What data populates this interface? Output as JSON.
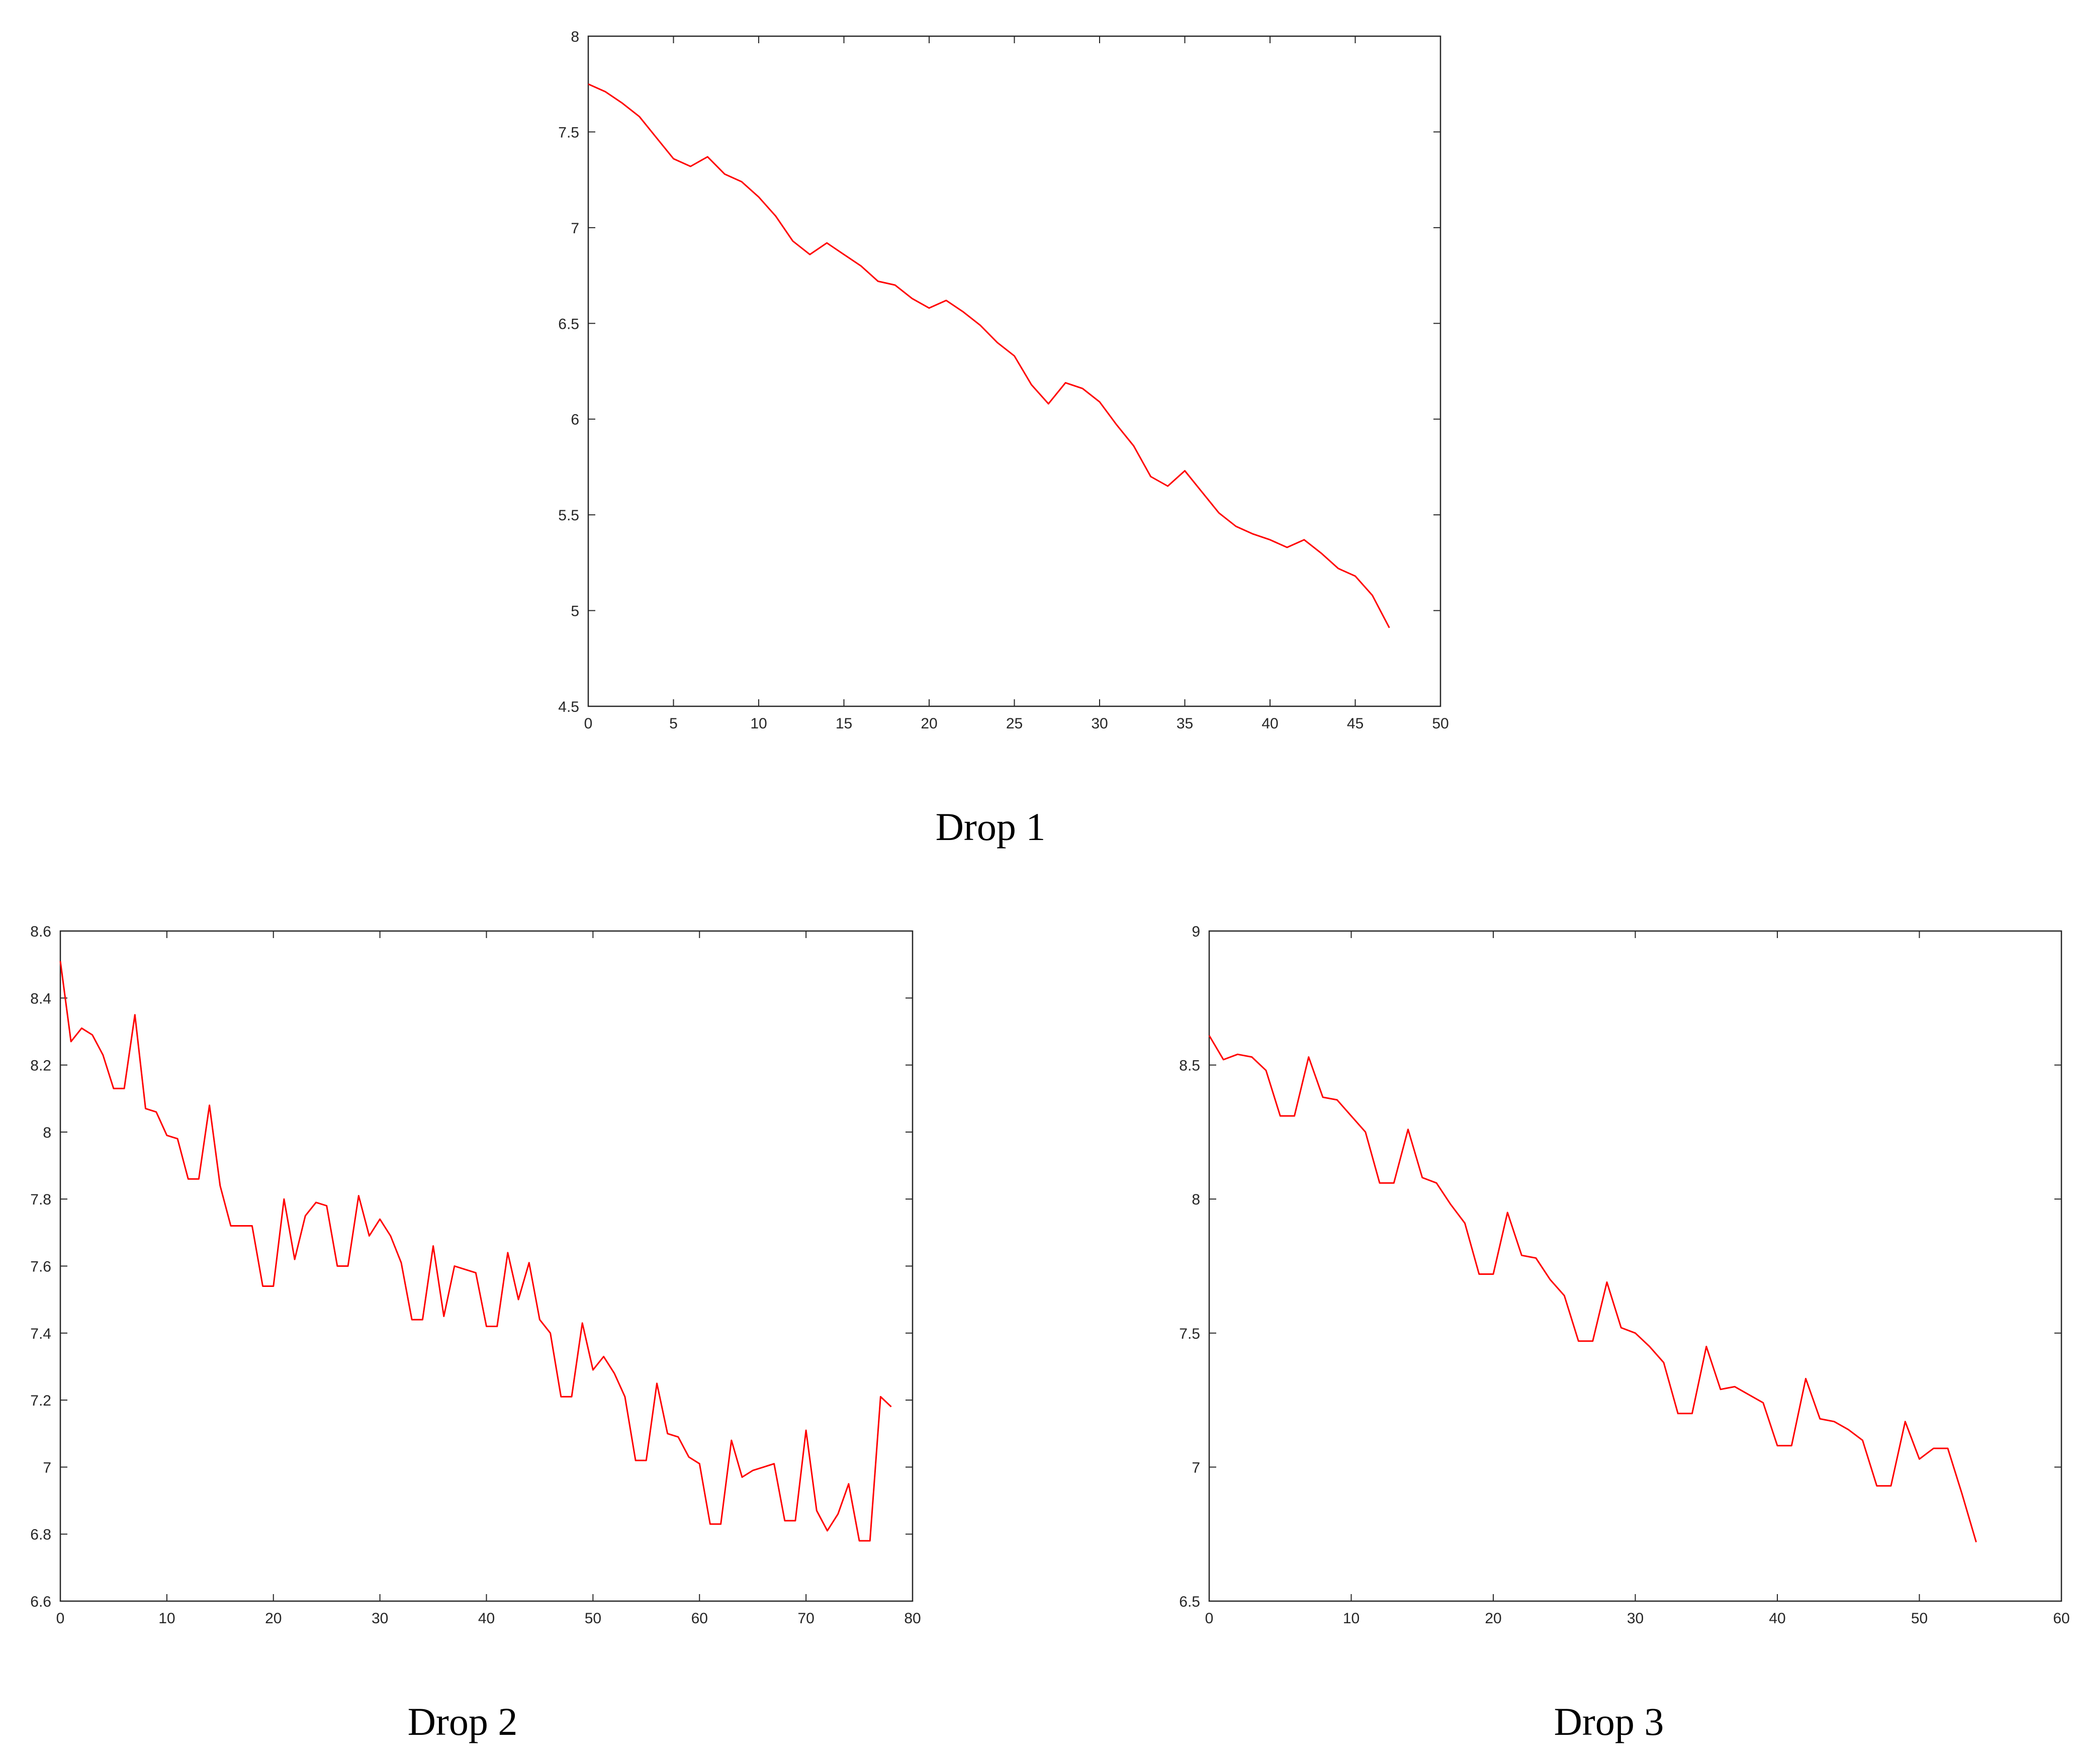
{
  "chart_data": [
    {
      "type": "line",
      "title": "",
      "caption": "Drop 1",
      "xlabel": "",
      "ylabel": "",
      "xlim": [
        0,
        50
      ],
      "ylim": [
        4.5,
        8
      ],
      "xticks": [
        "0",
        "5",
        "10",
        "15",
        "20",
        "25",
        "30",
        "35",
        "40",
        "45",
        "50"
      ],
      "yticks": [
        "4.5",
        "5",
        "5.5",
        "6",
        "6.5",
        "7",
        "7.5",
        "8"
      ],
      "grid": false,
      "color": "#ff0000",
      "series": [
        {
          "x": [
            0,
            1,
            2,
            3,
            4,
            5,
            6,
            7,
            8,
            9,
            10,
            11,
            12,
            13,
            14,
            15,
            16,
            17,
            18,
            19,
            20,
            21,
            22,
            23,
            24,
            25,
            26,
            27,
            28,
            29,
            30,
            31,
            32,
            33,
            34,
            35,
            36,
            37,
            38,
            39,
            40,
            41,
            42,
            43,
            44,
            45,
            46,
            47
          ],
          "values": [
            7.75,
            7.71,
            7.65,
            7.58,
            7.47,
            7.36,
            7.32,
            7.37,
            7.28,
            7.24,
            7.16,
            7.06,
            6.93,
            6.86,
            6.92,
            6.86,
            6.8,
            6.72,
            6.7,
            6.63,
            6.58,
            6.62,
            6.56,
            6.49,
            6.4,
            6.33,
            6.18,
            6.08,
            6.19,
            6.16,
            6.09,
            5.97,
            5.86,
            5.7,
            5.65,
            5.73,
            5.62,
            5.51,
            5.44,
            5.4,
            5.37,
            5.33,
            5.37,
            5.3,
            5.22,
            5.18,
            5.08,
            4.91
          ]
        }
      ]
    },
    {
      "type": "line",
      "title": "",
      "caption": "Drop 2",
      "xlabel": "",
      "ylabel": "",
      "xlim": [
        0,
        80
      ],
      "ylim": [
        6.6,
        8.6
      ],
      "xticks": [
        "0",
        "10",
        "20",
        "30",
        "40",
        "50",
        "60",
        "70",
        "80"
      ],
      "yticks": [
        "6.6",
        "6.8",
        "7",
        "7.2",
        "7.4",
        "7.6",
        "7.8",
        "8",
        "8.2",
        "8.4",
        "8.6"
      ],
      "grid": false,
      "color": "#ff0000",
      "series": [
        {
          "x": [
            0,
            1,
            2,
            3,
            4,
            5,
            6,
            7,
            8,
            9,
            10,
            11,
            12,
            13,
            14,
            15,
            16,
            17,
            18,
            19,
            20,
            21,
            22,
            23,
            24,
            25,
            26,
            27,
            28,
            29,
            30,
            31,
            32,
            33,
            34,
            35,
            36,
            37,
            38,
            39,
            40,
            41,
            42,
            43,
            44,
            45,
            46,
            47,
            48,
            49,
            50,
            51,
            52,
            53,
            54,
            55,
            56,
            57,
            58,
            59,
            60,
            61,
            62,
            63,
            64,
            65,
            66,
            67,
            68,
            69,
            70,
            71,
            72,
            73,
            74,
            75,
            76,
            77,
            78
          ],
          "values": [
            8.51,
            8.27,
            8.31,
            8.29,
            8.23,
            8.13,
            8.13,
            8.35,
            8.07,
            8.06,
            7.99,
            7.98,
            7.86,
            7.86,
            8.08,
            7.84,
            7.72,
            7.72,
            7.72,
            7.54,
            7.54,
            7.8,
            7.62,
            7.75,
            7.79,
            7.78,
            7.6,
            7.6,
            7.81,
            7.69,
            7.74,
            7.69,
            7.61,
            7.44,
            7.44,
            7.66,
            7.45,
            7.6,
            7.59,
            7.58,
            7.42,
            7.42,
            7.64,
            7.5,
            7.61,
            7.44,
            7.4,
            7.21,
            7.21,
            7.43,
            7.29,
            7.33,
            7.28,
            7.21,
            7.02,
            7.02,
            7.25,
            7.1,
            7.09,
            7.03,
            7.01,
            6.83,
            6.83,
            7.08,
            6.97,
            6.99,
            7.0,
            7.01,
            6.84,
            6.84,
            7.11,
            6.87,
            6.81,
            6.86,
            6.95,
            6.78,
            6.78,
            7.21,
            7.18
          ]
        }
      ]
    },
    {
      "type": "line",
      "title": "",
      "caption": "Drop 3",
      "xlabel": "",
      "ylabel": "",
      "xlim": [
        0,
        60
      ],
      "ylim": [
        6.5,
        9
      ],
      "xticks": [
        "0",
        "10",
        "20",
        "30",
        "40",
        "50",
        "60"
      ],
      "yticks": [
        "6.5",
        "7",
        "7.5",
        "8",
        "8.5",
        "9"
      ],
      "grid": false,
      "color": "#ff0000",
      "series": [
        {
          "x": [
            0,
            1,
            2,
            3,
            4,
            5,
            6,
            7,
            8,
            9,
            10,
            11,
            12,
            13,
            14,
            15,
            16,
            17,
            18,
            19,
            20,
            21,
            22,
            23,
            24,
            25,
            26,
            27,
            28,
            29,
            30,
            31,
            32,
            33,
            34,
            35,
            36,
            37,
            38,
            39,
            40,
            41,
            42,
            43,
            44,
            45,
            46,
            47,
            48,
            49,
            50,
            51,
            52,
            53,
            54
          ],
          "values": [
            8.61,
            8.52,
            8.54,
            8.53,
            8.48,
            8.31,
            8.31,
            8.53,
            8.38,
            8.37,
            8.31,
            8.25,
            8.06,
            8.06,
            8.26,
            8.08,
            8.06,
            7.98,
            7.91,
            7.72,
            7.72,
            7.95,
            7.79,
            7.78,
            7.7,
            7.64,
            7.47,
            7.47,
            7.69,
            7.52,
            7.5,
            7.45,
            7.39,
            7.2,
            7.2,
            7.45,
            7.29,
            7.3,
            7.27,
            7.24,
            7.08,
            7.08,
            7.33,
            7.18,
            7.17,
            7.14,
            7.1,
            6.93,
            6.93,
            7.17,
            7.03,
            7.07,
            7.07,
            6.9,
            6.72
          ]
        }
      ]
    }
  ]
}
